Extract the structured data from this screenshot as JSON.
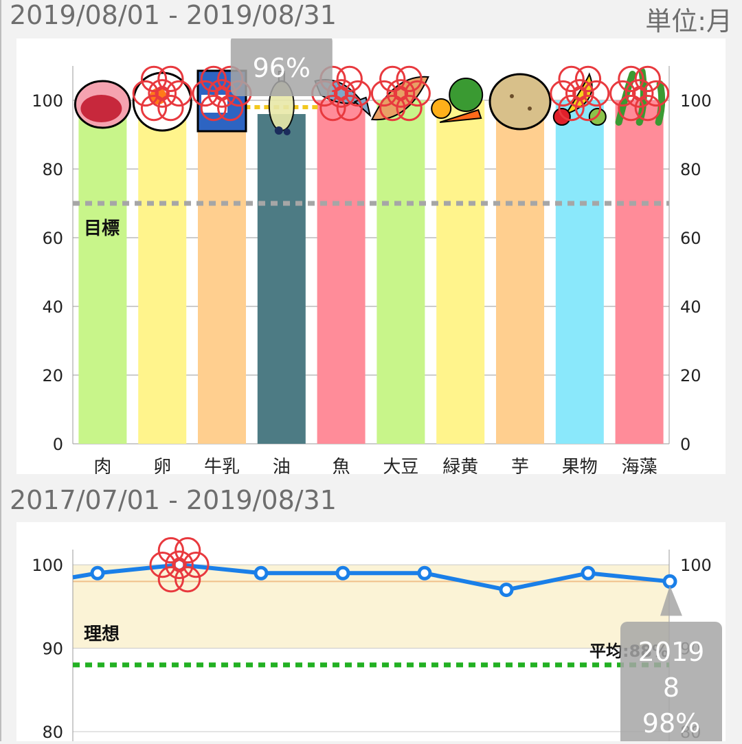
{
  "header1": {
    "date_range": "2019/08/01 - 2019/08/31",
    "unit": "単位:月"
  },
  "header2": {
    "date_range": "2017/07/01 - 2019/08/31"
  },
  "chart_data": [
    {
      "type": "bar",
      "categories": [
        "肉",
        "卵",
        "牛乳",
        "油",
        "魚",
        "大豆",
        "緑黄",
        "芋",
        "果物",
        "海藻"
      ],
      "values": [
        100,
        100,
        100,
        96,
        100,
        100,
        100,
        100,
        100,
        100
      ],
      "colors": [
        "#c8f58a",
        "#fff48c",
        "#ffcf8f",
        "#4d7b84",
        "#ff8c99",
        "#c8f58a",
        "#fff48c",
        "#ffcf8f",
        "#8ae8fb",
        "#ff8c99"
      ],
      "icons": [
        "meat-icon",
        "egg-icon",
        "milk-icon",
        "oil-icon",
        "fish-icon",
        "soybean-icon",
        "vegetable-icon",
        "potato-icon",
        "fruit-icon",
        "seaweed-icon"
      ],
      "flower_marks": [
        false,
        true,
        true,
        false,
        true,
        true,
        false,
        false,
        true,
        true
      ],
      "ylim": [
        0,
        110
      ],
      "yticks": [
        0,
        20,
        40,
        60,
        80,
        100
      ],
      "target": {
        "value": 70,
        "label": "目標"
      },
      "selected_index": 3,
      "tooltip": "96%",
      "grid": true
    },
    {
      "type": "line",
      "y": [
        98.5,
        99,
        100,
        99,
        99,
        99,
        97,
        99,
        98
      ],
      "ylim": [
        80,
        101
      ],
      "yticks": [
        80,
        90,
        100
      ],
      "ideal_band": {
        "from": 90,
        "to": 100,
        "label": "理想"
      },
      "average": {
        "value": 88,
        "label": "平均:88%"
      },
      "flower_index": 2,
      "tooltip": {
        "year": "2019",
        "month": "8",
        "value": "98%"
      },
      "color": "#1a7fe8"
    }
  ]
}
